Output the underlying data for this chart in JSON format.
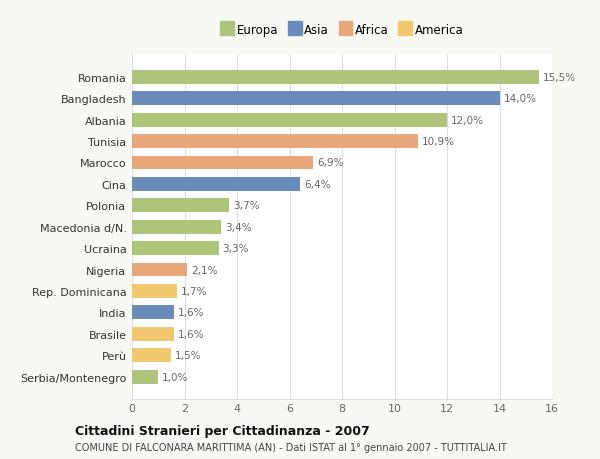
{
  "countries": [
    "Romania",
    "Bangladesh",
    "Albania",
    "Tunisia",
    "Marocco",
    "Cina",
    "Polonia",
    "Macedonia d/N.",
    "Ucraina",
    "Nigeria",
    "Rep. Dominicana",
    "India",
    "Brasile",
    "Perù",
    "Serbia/Montenegro"
  ],
  "values": [
    15.5,
    14.0,
    12.0,
    10.9,
    6.9,
    6.4,
    3.7,
    3.4,
    3.3,
    2.1,
    1.7,
    1.6,
    1.6,
    1.5,
    1.0
  ],
  "labels": [
    "15,5%",
    "14,0%",
    "12,0%",
    "10,9%",
    "6,9%",
    "6,4%",
    "3,7%",
    "3,4%",
    "3,3%",
    "2,1%",
    "1,7%",
    "1,6%",
    "1,6%",
    "1,5%",
    "1,0%"
  ],
  "continents": [
    "Europa",
    "Asia",
    "Europa",
    "Africa",
    "Africa",
    "Asia",
    "Europa",
    "Europa",
    "Europa",
    "Africa",
    "America",
    "Asia",
    "America",
    "America",
    "Europa"
  ],
  "colors": {
    "Europa": "#adc47a",
    "Asia": "#6b8cba",
    "Africa": "#e8a87c",
    "America": "#f0c96e"
  },
  "legend_order": [
    "Europa",
    "Asia",
    "Africa",
    "America"
  ],
  "title": "Cittadini Stranieri per Cittadinanza - 2007",
  "subtitle": "COMUNE DI FALCONARA MARITTIMA (AN) - Dati ISTAT al 1° gennaio 2007 - TUTTITALIA.IT",
  "xlim": [
    0,
    16
  ],
  "xticks": [
    0,
    2,
    4,
    6,
    8,
    10,
    12,
    14,
    16
  ],
  "background_color": "#f8f8f4",
  "plot_bg": "#ffffff",
  "grid_color": "#dddddd",
  "label_color": "#666666",
  "ytick_color": "#333333"
}
